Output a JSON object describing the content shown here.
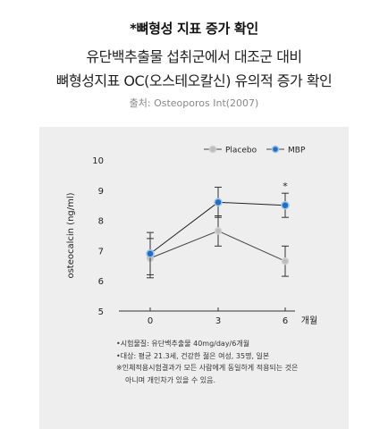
{
  "header": {
    "kicker": "*뼈형성 지표 증가 확인",
    "title_line1": "유단백추출물 섭취군에서 대조군 대비",
    "title_line2": "뼈형성지표 OC(오스테오칼신) 유의적 증가 확인",
    "source": "출처: Osteoporos Int(2007)"
  },
  "chart_data": {
    "type": "line",
    "ylabel": "osteocalcin (ng/ml)",
    "x_unit_label": "개월",
    "categories": [
      "0",
      "3",
      "6"
    ],
    "ylim": [
      5,
      10
    ],
    "yticks": [
      "5",
      "6",
      "7",
      "8",
      "9",
      "10"
    ],
    "legend_placement": "top-right",
    "series": [
      {
        "name": "Placebo",
        "color": "#bdbdbd",
        "values": [
          6.75,
          7.65,
          6.65
        ],
        "error": [
          0.65,
          0.5,
          0.5
        ]
      },
      {
        "name": "MBP",
        "color": "#1f6fc5",
        "values": [
          6.9,
          8.6,
          8.5
        ],
        "error": [
          0.7,
          0.5,
          0.4
        ]
      }
    ],
    "annotation": "*",
    "annotation_at": {
      "series": "MBP",
      "category": "6"
    },
    "grid": false
  },
  "notes": {
    "line1": "•시험물질: 유단백추출물 40mg/day/6개월",
    "line2": "•대상: 평균 21.3세, 건강한 젊은 여성, 35명, 일본",
    "line3": "※인체적용시험결과가 모든 사람에게 동일하게 적용되는 것은",
    "line4": "아니며 개인차가 있을 수 있음."
  }
}
